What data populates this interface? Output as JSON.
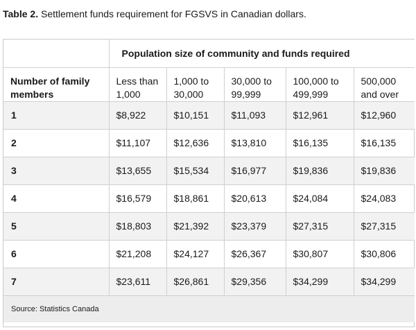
{
  "caption": {
    "label": "Table 2.",
    "text": " Settlement funds requirement for FGSVS in Canadian dollars."
  },
  "table": {
    "group_header": "Population size of community and funds required",
    "row_header": "Number of family members",
    "columns": [
      "Less than 1,000",
      "1,000 to 30,000",
      "30,000 to 99,999",
      "100,000 to 499,999",
      "500,000 and over"
    ],
    "rows": [
      {
        "members": "1",
        "values": [
          "$8,922",
          "$10,151",
          "$11,093",
          "$12,961",
          "$12,960"
        ]
      },
      {
        "members": "2",
        "values": [
          "$11,107",
          "$12,636",
          "$13,810",
          "$16,135",
          "$16,135"
        ]
      },
      {
        "members": "3",
        "values": [
          "$13,655",
          "$15,534",
          "$16,977",
          "$19,836",
          "$19,836"
        ]
      },
      {
        "members": "4",
        "values": [
          "$16,579",
          "$18,861",
          "$20,613",
          "$24,084",
          "$24,083"
        ]
      },
      {
        "members": "5",
        "values": [
          "$18,803",
          "$21,392",
          "$23,379",
          "$27,315",
          "$27,315"
        ]
      },
      {
        "members": "6",
        "values": [
          "$21,208",
          "$24,127",
          "$26,367",
          "$30,807",
          "$30,806"
        ]
      },
      {
        "members": "7",
        "values": [
          "$23,611",
          "$26,861",
          "$29,356",
          "$34,299",
          "$34,299"
        ]
      }
    ],
    "source": "Source: Statistics Canada"
  }
}
